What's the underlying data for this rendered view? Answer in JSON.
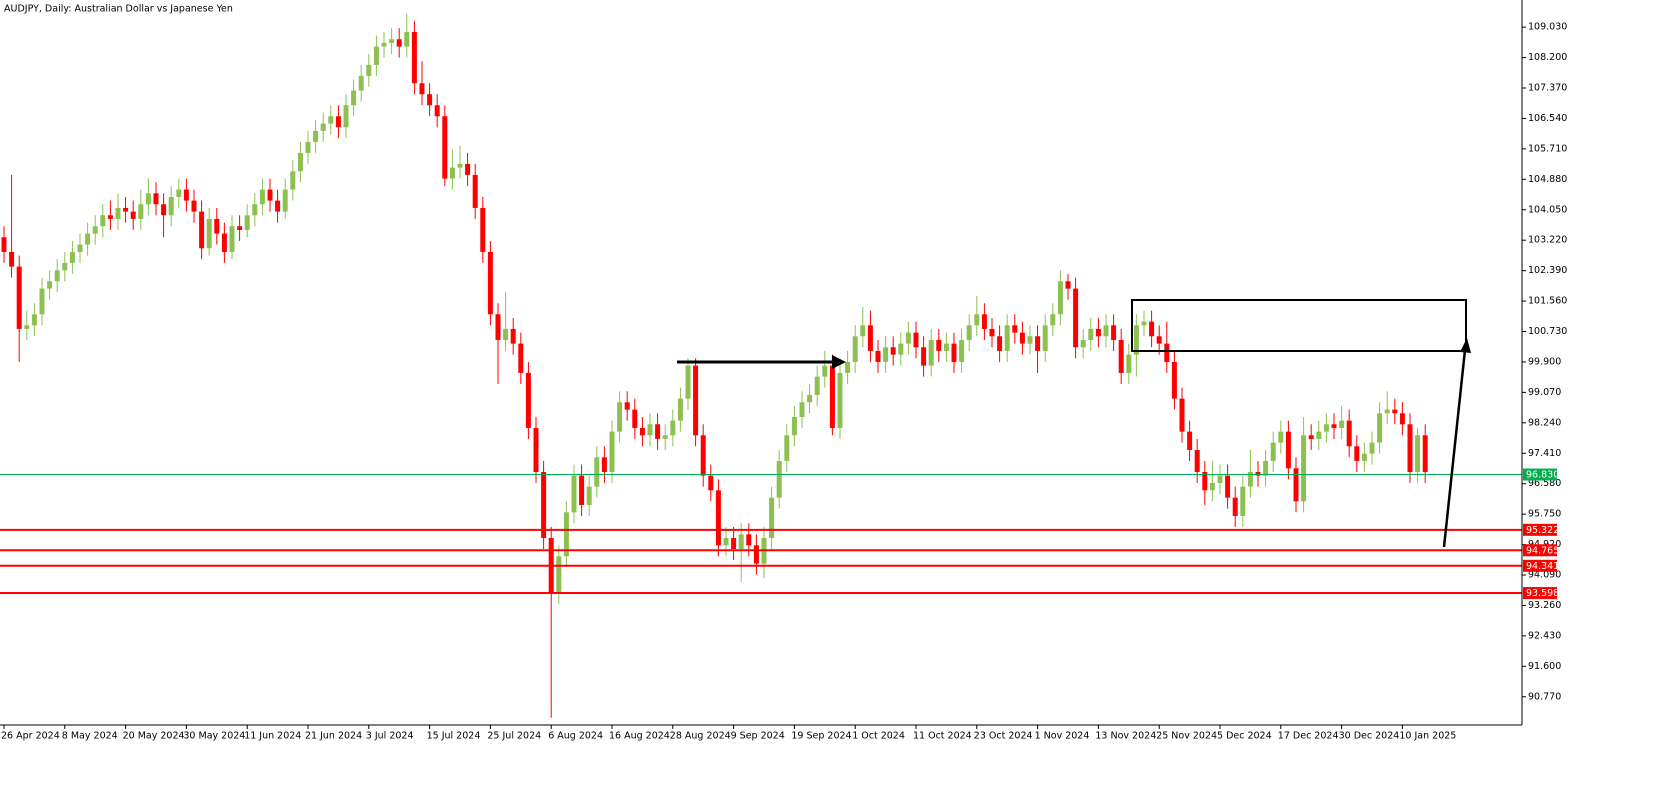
{
  "chart_data": {
    "type": "candlestick",
    "title": "AUDJPY, Daily:  Australian Dollar vs Japanese Yen",
    "up_color": "#8cc152",
    "down_color": "#ff0000",
    "ylim": [
      90.0,
      109.77
    ],
    "yticks": [
      {
        "value": 109.03,
        "label": "109.030"
      },
      {
        "value": 108.2,
        "label": "108.200"
      },
      {
        "value": 107.37,
        "label": "107.370"
      },
      {
        "value": 106.54,
        "label": "106.540"
      },
      {
        "value": 105.71,
        "label": "105.710"
      },
      {
        "value": 104.88,
        "label": "104.880"
      },
      {
        "value": 104.05,
        "label": "104.050"
      },
      {
        "value": 103.22,
        "label": "103.220"
      },
      {
        "value": 102.39,
        "label": "102.390"
      },
      {
        "value": 101.56,
        "label": "101.560"
      },
      {
        "value": 100.73,
        "label": "100.730"
      },
      {
        "value": 99.9,
        "label": "99.900"
      },
      {
        "value": 99.07,
        "label": "99.070"
      },
      {
        "value": 98.24,
        "label": "98.240"
      },
      {
        "value": 97.41,
        "label": "97.410"
      },
      {
        "value": 96.58,
        "label": "96.580"
      },
      {
        "value": 95.75,
        "label": "95.750"
      },
      {
        "value": 94.92,
        "label": "94.920"
      },
      {
        "value": 94.09,
        "label": "94.090"
      },
      {
        "value": 93.26,
        "label": "93.260"
      },
      {
        "value": 92.43,
        "label": "92.430"
      },
      {
        "value": 91.6,
        "label": "91.600"
      },
      {
        "value": 90.77,
        "label": "90.770"
      }
    ],
    "hlines": [
      {
        "value": 96.83,
        "label": "96.830",
        "color": "#00b050"
      },
      {
        "value": 95.322,
        "label": "95.322",
        "color": "#ff0000"
      },
      {
        "value": 94.765,
        "label": "94.765",
        "color": "#ff0000"
      },
      {
        "value": 94.341,
        "label": "94.341",
        "color": "#ff0000"
      },
      {
        "value": 93.598,
        "label": "93.598",
        "color": "#ff0000"
      }
    ],
    "categories": [
      "26 Apr 2024",
      null,
      null,
      null,
      null,
      null,
      null,
      null,
      "8 May 2024",
      null,
      null,
      null,
      null,
      null,
      null,
      null,
      "20 May 2024",
      null,
      null,
      null,
      null,
      null,
      null,
      null,
      "30 May 2024",
      null,
      null,
      null,
      null,
      null,
      null,
      null,
      "11 Jun 2024",
      null,
      null,
      null,
      null,
      null,
      null,
      null,
      "21 Jun 2024",
      null,
      null,
      null,
      null,
      null,
      null,
      null,
      "3 Jul 2024",
      null,
      null,
      null,
      null,
      null,
      null,
      null,
      "15 Jul 2024",
      null,
      null,
      null,
      null,
      null,
      null,
      null,
      "25 Jul 2024",
      null,
      null,
      null,
      null,
      null,
      null,
      null,
      "6 Aug 2024",
      null,
      null,
      null,
      null,
      null,
      null,
      null,
      "16 Aug 2024",
      null,
      null,
      null,
      null,
      null,
      null,
      null,
      "28 Aug 2024",
      null,
      null,
      null,
      null,
      null,
      null,
      null,
      "9 Sep 2024",
      null,
      null,
      null,
      null,
      null,
      null,
      null,
      "19 Sep 2024",
      null,
      null,
      null,
      null,
      null,
      null,
      null,
      "1 Oct 2024",
      null,
      null,
      null,
      null,
      null,
      null,
      null,
      "11 Oct 2024",
      null,
      null,
      null,
      null,
      null,
      null,
      null,
      "23 Oct 2024",
      null,
      null,
      null,
      null,
      null,
      null,
      null,
      "1 Nov 2024",
      null,
      null,
      null,
      null,
      null,
      null,
      null,
      "13 Nov 2024",
      null,
      null,
      null,
      null,
      null,
      null,
      null,
      "25 Nov 2024",
      null,
      null,
      null,
      null,
      null,
      null,
      null,
      "5 Dec 2024",
      null,
      null,
      null,
      null,
      null,
      null,
      null,
      "17 Dec 2024",
      null,
      null,
      null,
      null,
      null,
      null,
      null,
      "30 Dec 2024",
      null,
      null,
      null,
      null,
      null,
      null,
      null,
      "10 Jan 2025",
      null,
      null,
      null
    ],
    "ohlc": [
      [
        103.3,
        103.6,
        102.6,
        102.9
      ],
      [
        102.9,
        105.0,
        102.2,
        102.5
      ],
      [
        102.5,
        102.8,
        99.9,
        100.8
      ],
      [
        100.8,
        101.3,
        100.5,
        100.9
      ],
      [
        100.9,
        101.5,
        100.6,
        101.2
      ],
      [
        101.2,
        102.2,
        100.9,
        101.9
      ],
      [
        101.9,
        102.4,
        101.6,
        102.1
      ],
      [
        102.1,
        102.7,
        101.8,
        102.4
      ],
      [
        102.4,
        102.9,
        102.1,
        102.6
      ],
      [
        102.6,
        103.2,
        102.3,
        102.9
      ],
      [
        102.9,
        103.4,
        102.6,
        103.1
      ],
      [
        103.1,
        103.7,
        102.8,
        103.4
      ],
      [
        103.4,
        103.9,
        103.1,
        103.6
      ],
      [
        103.6,
        104.2,
        103.3,
        103.9
      ],
      [
        103.9,
        104.3,
        103.5,
        103.8
      ],
      [
        103.8,
        104.5,
        103.5,
        104.1
      ],
      [
        104.1,
        104.4,
        103.7,
        104.0
      ],
      [
        104.0,
        104.3,
        103.5,
        103.8
      ],
      [
        103.8,
        104.6,
        103.5,
        104.2
      ],
      [
        104.2,
        104.9,
        103.9,
        104.5
      ],
      [
        104.5,
        104.8,
        103.9,
        104.2
      ],
      [
        104.2,
        104.5,
        103.3,
        103.9
      ],
      [
        103.9,
        104.7,
        103.6,
        104.4
      ],
      [
        104.4,
        104.9,
        104.1,
        104.6
      ],
      [
        104.6,
        104.9,
        104.0,
        104.3
      ],
      [
        104.3,
        104.6,
        103.7,
        104.0
      ],
      [
        104.0,
        104.3,
        102.7,
        103.0
      ],
      [
        103.0,
        104.1,
        102.8,
        103.8
      ],
      [
        103.8,
        104.1,
        103.1,
        103.4
      ],
      [
        103.4,
        103.7,
        102.6,
        102.9
      ],
      [
        102.9,
        103.9,
        102.7,
        103.6
      ],
      [
        103.6,
        103.9,
        103.2,
        103.5
      ],
      [
        103.5,
        104.2,
        103.3,
        103.9
      ],
      [
        103.9,
        104.5,
        103.6,
        104.2
      ],
      [
        104.2,
        104.9,
        103.9,
        104.6
      ],
      [
        104.6,
        104.9,
        104.0,
        104.3
      ],
      [
        104.3,
        104.6,
        103.7,
        104.0
      ],
      [
        104.0,
        104.9,
        103.8,
        104.6
      ],
      [
        104.6,
        105.4,
        104.3,
        105.1
      ],
      [
        105.1,
        105.9,
        104.8,
        105.6
      ],
      [
        105.6,
        106.2,
        105.3,
        105.9
      ],
      [
        105.9,
        106.5,
        105.6,
        106.2
      ],
      [
        106.2,
        106.7,
        105.9,
        106.4
      ],
      [
        106.4,
        106.9,
        106.1,
        106.6
      ],
      [
        106.6,
        106.9,
        106.0,
        106.3
      ],
      [
        106.3,
        107.2,
        106.0,
        106.9
      ],
      [
        106.9,
        107.6,
        106.6,
        107.3
      ],
      [
        107.3,
        108.0,
        107.0,
        107.7
      ],
      [
        107.7,
        108.3,
        107.4,
        108.0
      ],
      [
        108.0,
        108.8,
        107.7,
        108.5
      ],
      [
        108.5,
        108.9,
        108.2,
        108.6
      ],
      [
        108.6,
        109.0,
        108.3,
        108.7
      ],
      [
        108.7,
        109.0,
        108.2,
        108.5
      ],
      [
        108.5,
        109.4,
        108.2,
        108.9
      ],
      [
        108.9,
        109.2,
        107.2,
        107.5
      ],
      [
        107.5,
        108.1,
        106.9,
        107.2
      ],
      [
        107.2,
        107.5,
        106.6,
        106.9
      ],
      [
        106.9,
        107.2,
        106.3,
        106.6
      ],
      [
        106.6,
        106.9,
        104.7,
        104.9
      ],
      [
        104.9,
        105.7,
        104.6,
        105.2
      ],
      [
        105.2,
        105.8,
        104.9,
        105.3
      ],
      [
        105.3,
        105.6,
        104.7,
        105.0
      ],
      [
        105.0,
        105.3,
        103.8,
        104.1
      ],
      [
        104.1,
        104.4,
        102.6,
        102.9
      ],
      [
        102.9,
        103.2,
        100.9,
        101.2
      ],
      [
        101.2,
        101.5,
        99.3,
        100.5
      ],
      [
        100.5,
        101.8,
        100.2,
        100.8
      ],
      [
        100.8,
        101.1,
        100.1,
        100.4
      ],
      [
        100.4,
        100.7,
        99.3,
        99.6
      ],
      [
        99.6,
        99.9,
        97.8,
        98.1
      ],
      [
        98.1,
        98.4,
        96.6,
        96.9
      ],
      [
        96.9,
        97.2,
        94.8,
        95.1
      ],
      [
        95.1,
        95.4,
        90.2,
        93.6
      ],
      [
        93.6,
        94.9,
        93.3,
        94.6
      ],
      [
        94.6,
        96.1,
        94.3,
        95.8
      ],
      [
        95.8,
        97.1,
        95.5,
        96.8
      ],
      [
        96.8,
        97.1,
        95.7,
        96.0
      ],
      [
        96.0,
        96.8,
        95.7,
        96.5
      ],
      [
        96.5,
        97.6,
        96.2,
        97.3
      ],
      [
        97.3,
        97.6,
        96.6,
        96.9
      ],
      [
        96.9,
        98.3,
        96.6,
        98.0
      ],
      [
        98.0,
        99.1,
        97.7,
        98.8
      ],
      [
        98.8,
        99.1,
        98.3,
        98.6
      ],
      [
        98.6,
        98.9,
        97.8,
        98.1
      ],
      [
        98.1,
        98.4,
        97.6,
        97.9
      ],
      [
        97.9,
        98.5,
        97.6,
        98.2
      ],
      [
        98.2,
        98.5,
        97.5,
        97.8
      ],
      [
        97.8,
        98.2,
        97.5,
        97.9
      ],
      [
        97.9,
        98.6,
        97.6,
        98.3
      ],
      [
        98.3,
        99.2,
        98.0,
        98.9
      ],
      [
        98.9,
        100.0,
        98.6,
        99.8
      ],
      [
        99.8,
        100.0,
        97.6,
        97.9
      ],
      [
        97.9,
        98.2,
        96.5,
        96.8
      ],
      [
        96.8,
        97.1,
        96.1,
        96.4
      ],
      [
        96.4,
        96.7,
        94.6,
        94.9
      ],
      [
        94.9,
        95.4,
        94.6,
        95.1
      ],
      [
        95.1,
        95.4,
        94.5,
        94.8
      ],
      [
        94.8,
        95.5,
        93.9,
        95.2
      ],
      [
        95.2,
        95.5,
        94.6,
        94.9
      ],
      [
        94.9,
        95.2,
        94.1,
        94.4
      ],
      [
        94.4,
        95.4,
        94.0,
        95.1
      ],
      [
        95.1,
        96.5,
        94.8,
        96.2
      ],
      [
        96.2,
        97.5,
        95.9,
        97.2
      ],
      [
        97.2,
        98.2,
        96.9,
        97.9
      ],
      [
        97.9,
        98.7,
        97.6,
        98.4
      ],
      [
        98.4,
        99.1,
        98.1,
        98.8
      ],
      [
        98.8,
        99.3,
        98.5,
        99.0
      ],
      [
        99.0,
        99.8,
        98.7,
        99.5
      ],
      [
        99.5,
        100.2,
        99.2,
        99.8
      ],
      [
        99.8,
        100.1,
        97.9,
        98.1
      ],
      [
        98.1,
        99.9,
        97.8,
        99.6
      ],
      [
        99.6,
        100.2,
        99.3,
        99.9
      ],
      [
        99.9,
        100.9,
        99.6,
        100.6
      ],
      [
        100.6,
        101.4,
        100.3,
        100.9
      ],
      [
        100.9,
        101.3,
        99.9,
        100.2
      ],
      [
        100.2,
        100.5,
        99.6,
        99.9
      ],
      [
        99.9,
        100.6,
        99.6,
        100.3
      ],
      [
        100.3,
        100.6,
        99.8,
        100.1
      ],
      [
        100.1,
        100.7,
        99.8,
        100.4
      ],
      [
        100.4,
        101.0,
        100.1,
        100.7
      ],
      [
        100.7,
        101.0,
        100.0,
        100.3
      ],
      [
        100.3,
        100.6,
        99.5,
        99.8
      ],
      [
        99.8,
        100.8,
        99.5,
        100.5
      ],
      [
        100.5,
        100.8,
        99.9,
        100.2
      ],
      [
        100.2,
        100.7,
        99.9,
        100.4
      ],
      [
        100.4,
        100.7,
        99.6,
        99.9
      ],
      [
        99.9,
        100.8,
        99.6,
        100.5
      ],
      [
        100.5,
        101.2,
        100.2,
        100.9
      ],
      [
        100.9,
        101.7,
        100.6,
        101.2
      ],
      [
        101.2,
        101.5,
        100.5,
        100.8
      ],
      [
        100.8,
        101.1,
        100.3,
        100.6
      ],
      [
        100.6,
        100.9,
        99.9,
        100.2
      ],
      [
        100.2,
        101.2,
        99.9,
        100.9
      ],
      [
        100.9,
        101.2,
        100.4,
        100.7
      ],
      [
        100.7,
        101.0,
        100.1,
        100.4
      ],
      [
        100.4,
        100.9,
        100.1,
        100.6
      ],
      [
        100.6,
        100.9,
        99.6,
        100.2
      ],
      [
        100.2,
        101.2,
        99.9,
        100.9
      ],
      [
        100.9,
        101.5,
        100.6,
        101.2
      ],
      [
        101.2,
        102.4,
        100.9,
        102.1
      ],
      [
        102.1,
        102.3,
        101.6,
        101.9
      ],
      [
        101.9,
        102.2,
        100.0,
        100.3
      ],
      [
        100.3,
        100.8,
        100.0,
        100.5
      ],
      [
        100.5,
        101.1,
        100.2,
        100.8
      ],
      [
        100.8,
        101.1,
        100.3,
        100.6
      ],
      [
        100.6,
        101.2,
        100.3,
        100.9
      ],
      [
        100.9,
        101.2,
        100.2,
        100.5
      ],
      [
        100.5,
        100.8,
        99.3,
        99.6
      ],
      [
        99.6,
        100.4,
        99.3,
        100.1
      ],
      [
        100.1,
        101.2,
        99.5,
        100.9
      ],
      [
        100.9,
        101.3,
        100.6,
        101.0
      ],
      [
        101.0,
        101.3,
        100.3,
        100.6
      ],
      [
        100.6,
        100.9,
        100.1,
        100.4
      ],
      [
        100.4,
        101.0,
        99.6,
        99.9
      ],
      [
        99.9,
        100.2,
        98.6,
        98.9
      ],
      [
        98.9,
        99.2,
        97.7,
        98.0
      ],
      [
        98.0,
        98.3,
        97.2,
        97.5
      ],
      [
        97.5,
        97.8,
        96.6,
        96.9
      ],
      [
        96.9,
        97.2,
        96.0,
        96.4
      ],
      [
        96.4,
        97.2,
        96.1,
        96.6
      ],
      [
        96.6,
        97.1,
        96.3,
        96.8
      ],
      [
        96.8,
        97.1,
        95.9,
        96.2
      ],
      [
        96.2,
        96.5,
        95.4,
        95.7
      ],
      [
        95.7,
        96.8,
        95.4,
        96.5
      ],
      [
        96.5,
        97.5,
        96.2,
        96.9
      ],
      [
        96.9,
        97.2,
        96.5,
        96.8
      ],
      [
        96.8,
        97.5,
        96.5,
        97.2
      ],
      [
        97.2,
        98.0,
        96.9,
        97.7
      ],
      [
        97.7,
        98.3,
        97.4,
        98.0
      ],
      [
        98.0,
        98.3,
        96.7,
        97.0
      ],
      [
        97.0,
        97.3,
        95.8,
        96.1
      ],
      [
        96.1,
        98.4,
        95.8,
        97.9
      ],
      [
        97.9,
        98.2,
        97.5,
        97.8
      ],
      [
        97.8,
        98.3,
        97.5,
        98.0
      ],
      [
        98.0,
        98.5,
        97.7,
        98.2
      ],
      [
        98.2,
        98.5,
        97.8,
        98.1
      ],
      [
        98.1,
        98.7,
        97.8,
        98.3
      ],
      [
        98.3,
        98.6,
        97.3,
        97.6
      ],
      [
        97.6,
        97.9,
        96.9,
        97.2
      ],
      [
        97.2,
        97.7,
        96.9,
        97.4
      ],
      [
        97.4,
        98.0,
        97.1,
        97.7
      ],
      [
        97.7,
        98.8,
        97.4,
        98.5
      ],
      [
        98.5,
        99.1,
        98.2,
        98.6
      ],
      [
        98.6,
        98.9,
        98.2,
        98.5
      ],
      [
        98.5,
        98.8,
        97.9,
        98.2
      ],
      [
        98.2,
        98.5,
        96.6,
        96.9
      ],
      [
        96.9,
        98.1,
        96.6,
        97.9
      ],
      [
        97.9,
        98.2,
        96.6,
        96.9
      ]
    ]
  }
}
